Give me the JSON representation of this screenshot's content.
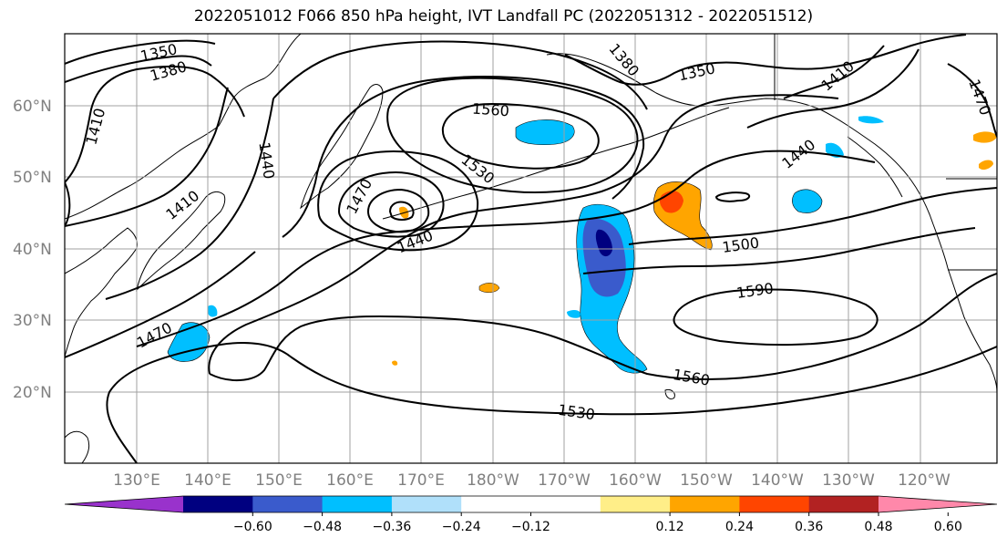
{
  "title": "2022051012 F066 850 hPa height, IVT Landfall PC (2022051312 - 2022051512)",
  "map": {
    "projection": "PlateCarree",
    "lon_range": [
      120,
      251
    ],
    "lat_range": [
      10,
      70
    ],
    "lat_ticks": [
      "20°N",
      "30°N",
      "40°N",
      "50°N",
      "60°N"
    ],
    "lon_ticks": [
      "130°E",
      "140°E",
      "150°E",
      "160°E",
      "170°E",
      "180°W",
      "170°W",
      "160°W",
      "150°W",
      "140°W",
      "130°W",
      "120°W"
    ],
    "contour_labels": [
      "1350",
      "1380",
      "1410",
      "1440",
      "1470",
      "1500",
      "1530",
      "1560",
      "1590",
      "1380",
      "1350",
      "1410",
      "1440",
      "1410",
      "1410",
      "1440",
      "1470",
      "1440",
      "1530",
      "1560",
      "1500",
      "1590",
      "1560",
      "1530",
      "1470"
    ],
    "gridlines": true
  },
  "colorbar": {
    "tick_labels": [
      "−0.60",
      "−0.48",
      "−0.36",
      "−0.24",
      "−0.12",
      "0.12",
      "0.24",
      "0.36",
      "0.48",
      "0.60"
    ],
    "colors": [
      "#9932cc",
      "#000080",
      "#3a5bcc",
      "#00bfff",
      "#b0e0fa",
      "#ffffff",
      "#ffffff",
      "#ffee88",
      "#ffa500",
      "#ff4500",
      "#b22222",
      "#ff88aa"
    ],
    "extend": "both"
  }
}
